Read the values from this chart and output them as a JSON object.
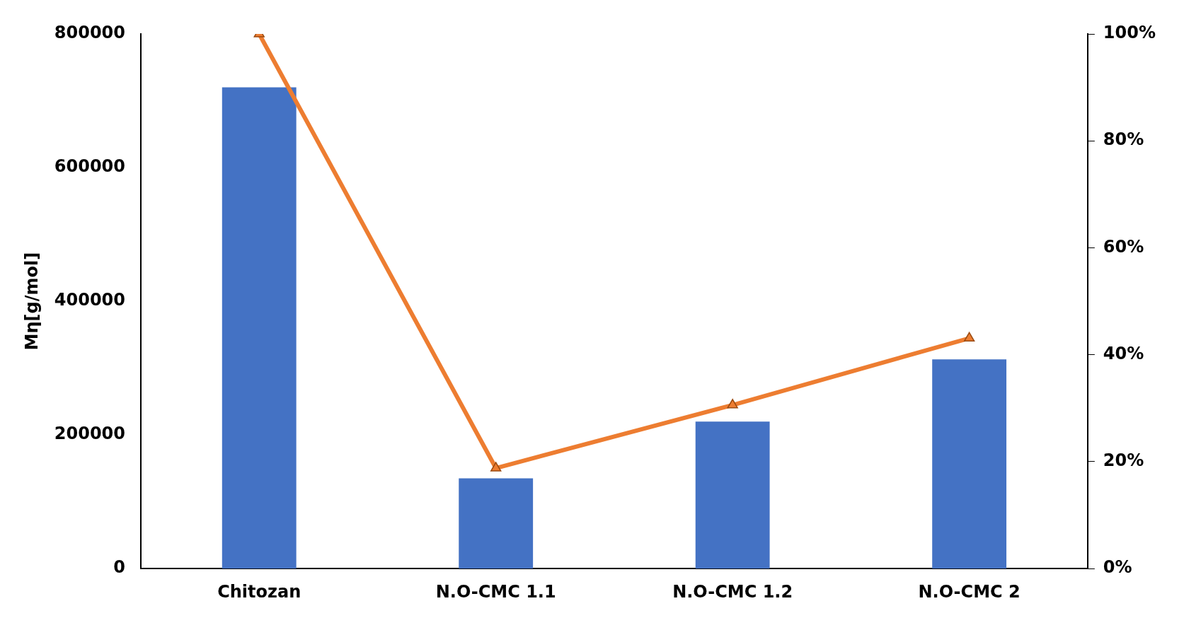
{
  "chart_data": {
    "type": "bar",
    "ylabel": "Mη[g/mol]",
    "categories": [
      "Chitozan",
      "N.O-CMC 1.1",
      "N.O-CMC 1.2",
      "N.O-CMC 2"
    ],
    "series": [
      {
        "color": "#4472c4",
        "values": [
          720000,
          135000,
          220000,
          313000
        ]
      },
      {
        "type": "line",
        "axis": "y2",
        "color": "#ed7d31",
        "marker": "triangle",
        "values": [
          100,
          18.8,
          30.6,
          43.1
        ]
      }
    ],
    "ylim": [
      0,
      800000
    ],
    "yticks": [
      0,
      200000,
      400000,
      600000,
      800000
    ],
    "y2lim": [
      0,
      100
    ],
    "y2ticks": [
      {
        "value": 0,
        "label": "0%"
      },
      {
        "value": 20,
        "label": "20%"
      },
      {
        "value": 40,
        "label": "40%"
      },
      {
        "value": 60,
        "label": "60%"
      },
      {
        "value": 80,
        "label": "80%"
      },
      {
        "value": 100,
        "label": "100%"
      }
    ],
    "grid": false,
    "legend": false
  }
}
